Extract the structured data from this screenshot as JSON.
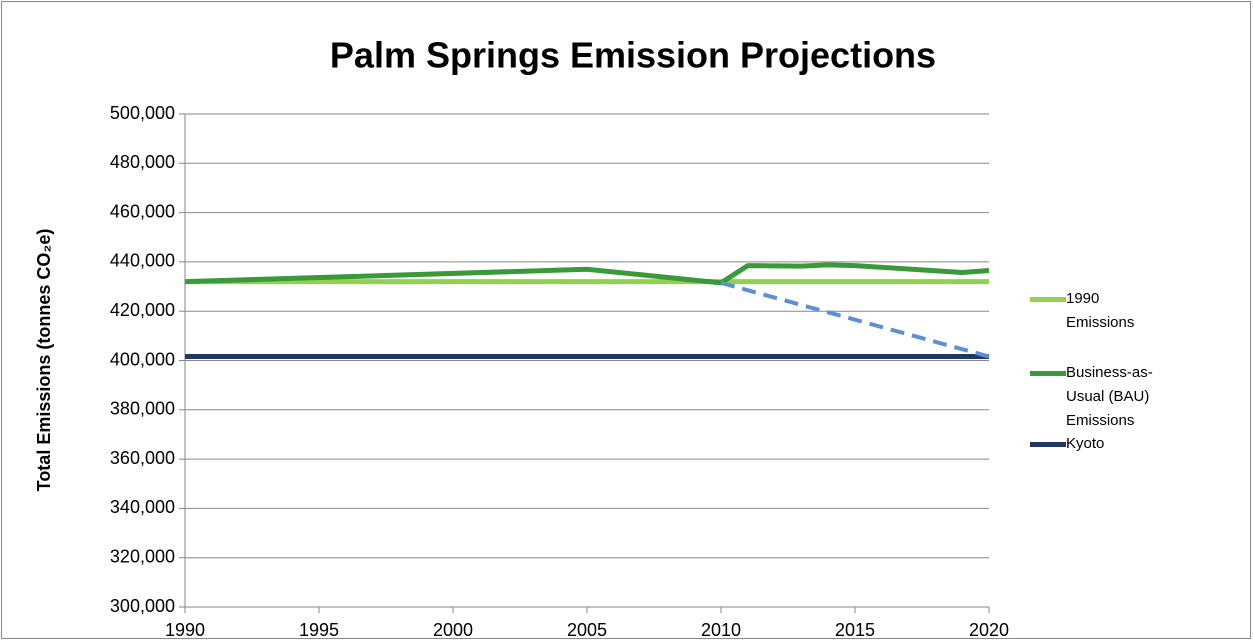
{
  "chart_data": {
    "type": "line",
    "title": "Palm Springs Emission Projections",
    "y_label": "Total Emissions (tonnes CO₂e)",
    "xlim": [
      1990,
      2020
    ],
    "xticks": [
      1990,
      1995,
      2000,
      2005,
      2010,
      2015,
      2020
    ],
    "ylim": [
      300000,
      500000
    ],
    "yticks": [
      {
        "value": 300000,
        "label": "300,000"
      },
      {
        "value": 320000,
        "label": "320,000"
      },
      {
        "value": 340000,
        "label": "340,000"
      },
      {
        "value": 360000,
        "label": "360,000"
      },
      {
        "value": 380000,
        "label": "380,000"
      },
      {
        "value": 400000,
        "label": "400,000"
      },
      {
        "value": 420000,
        "label": "420,000"
      },
      {
        "value": 440000,
        "label": "440,000"
      },
      {
        "value": 460000,
        "label": "460,000"
      },
      {
        "value": 480000,
        "label": "480,000"
      },
      {
        "value": 500000,
        "label": "500,000"
      }
    ],
    "grid": true,
    "legend": "right",
    "series": [
      {
        "name": "1990 Emissions",
        "color": "#92d050",
        "x": [
          1990,
          2020
        ],
        "values": [
          432000,
          432000
        ]
      },
      {
        "name": "Business-as-Usual (BAU) Emissions",
        "color": "#3a9a3a",
        "x": [
          1990,
          2005,
          2010,
          2011,
          2013,
          2014,
          2015,
          2019,
          2020
        ],
        "values": [
          432000,
          437000,
          431500,
          438500,
          438300,
          438800,
          438500,
          435700,
          436500
        ]
      },
      {
        "name": "Kyoto",
        "color": "#1f3864",
        "x": [
          1990,
          2020
        ],
        "values": [
          401600,
          401600
        ]
      },
      {
        "color": "#5b8fd6",
        "dashed": true,
        "x": [
          2010,
          2020
        ],
        "values": [
          431500,
          401600
        ]
      }
    ]
  }
}
